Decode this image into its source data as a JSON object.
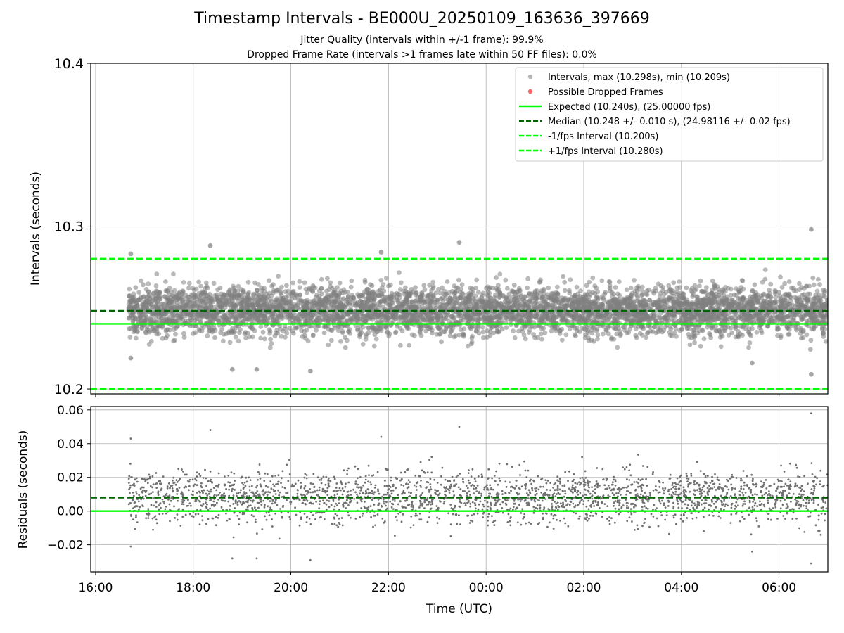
{
  "title": "Timestamp Intervals - BE000U_20250109_163636_397669",
  "subtitle_jitter": "Jitter Quality (intervals within +/-1 frame): 99.9%",
  "subtitle_dropped": "Dropped Frame Rate (intervals >1 frames late within 50 FF files): 0.0%",
  "colors": {
    "points": "#808080",
    "dropped": "#ff0000",
    "expected": "#00ff00",
    "median": "#006400",
    "bounds": "#00ff00"
  },
  "chart_data": [
    {
      "type": "scatter",
      "panel": "top",
      "ylabel": "Intervals (seconds)",
      "xlabel": "",
      "xlim_hours": [
        15.9,
        31.0
      ],
      "ylim": [
        10.197,
        10.4
      ],
      "yticks": [
        10.2,
        10.3,
        10.4
      ],
      "ytick_labels": [
        "10.2",
        "10.3",
        "10.4"
      ],
      "grid": true,
      "legend_position": "top-right",
      "legend": [
        {
          "label": "Intervals, max (10.298s), min (10.209s)",
          "marker": "dot",
          "color": "#808080"
        },
        {
          "label": "Possible Dropped Frames",
          "marker": "dot",
          "color": "#ff0000"
        },
        {
          "label": "Expected (10.240s), (25.00000 fps)",
          "marker": "solid",
          "color": "#00ff00"
        },
        {
          "label": "Median (10.248 +/- 0.010 s), (24.98116 +/- 0.02 fps)",
          "marker": "dashed",
          "color": "#006400"
        },
        {
          "label": "-1/fps Interval (10.200s)",
          "marker": "dashed",
          "color": "#00ff00"
        },
        {
          "label": "+1/fps Interval (10.280s)",
          "marker": "dashed",
          "color": "#00ff00"
        }
      ],
      "reference_lines": [
        {
          "name": "Expected",
          "y": 10.24,
          "style": "solid",
          "color": "#00ff00"
        },
        {
          "name": "Median",
          "y": 10.248,
          "style": "dashed",
          "color": "#006400"
        },
        {
          "name": "-1/fps Interval",
          "y": 10.2,
          "style": "dashed",
          "color": "#00ff00"
        },
        {
          "name": "+1/fps Interval",
          "y": 10.28,
          "style": "dashed",
          "color": "#00ff00"
        }
      ],
      "series": {
        "x_range_hours": [
          16.67,
          31.0
        ],
        "center": 10.248,
        "spread_sd": 0.01,
        "max": 10.298,
        "min": 10.209,
        "notable_points": [
          {
            "x": 16.72,
            "y": 10.283
          },
          {
            "x": 18.35,
            "y": 10.288
          },
          {
            "x": 21.85,
            "y": 10.284
          },
          {
            "x": 23.45,
            "y": 10.29
          },
          {
            "x": 30.66,
            "y": 10.298
          },
          {
            "x": 30.66,
            "y": 10.209
          },
          {
            "x": 18.8,
            "y": 10.212
          },
          {
            "x": 19.3,
            "y": 10.212
          },
          {
            "x": 20.4,
            "y": 10.211
          },
          {
            "x": 29.45,
            "y": 10.216
          },
          {
            "x": 16.72,
            "y": 10.219
          }
        ]
      }
    },
    {
      "type": "scatter",
      "panel": "bottom",
      "ylabel": "Residuals (seconds)",
      "xlabel": "Time (UTC)",
      "xlim_hours": [
        15.9,
        31.0
      ],
      "ylim": [
        -0.036,
        0.062
      ],
      "yticks": [
        -0.02,
        0.0,
        0.02,
        0.04,
        0.06
      ],
      "ytick_labels": [
        "−0.02",
        "0.00",
        "0.02",
        "0.04",
        "0.06"
      ],
      "xticks_hours": [
        16,
        18,
        20,
        22,
        24,
        26,
        28,
        30
      ],
      "xtick_labels": [
        "16:00",
        "18:00",
        "20:00",
        "22:00",
        "00:00",
        "02:00",
        "04:00",
        "06:00"
      ],
      "grid": true,
      "reference_lines": [
        {
          "name": "Expected",
          "y": 0.0,
          "style": "solid",
          "color": "#00ff00"
        },
        {
          "name": "Median",
          "y": 0.008,
          "style": "dashed",
          "color": "#006400"
        }
      ],
      "series": {
        "center": 0.008,
        "spread_sd": 0.01,
        "max": 0.058,
        "min": -0.031
      }
    }
  ]
}
